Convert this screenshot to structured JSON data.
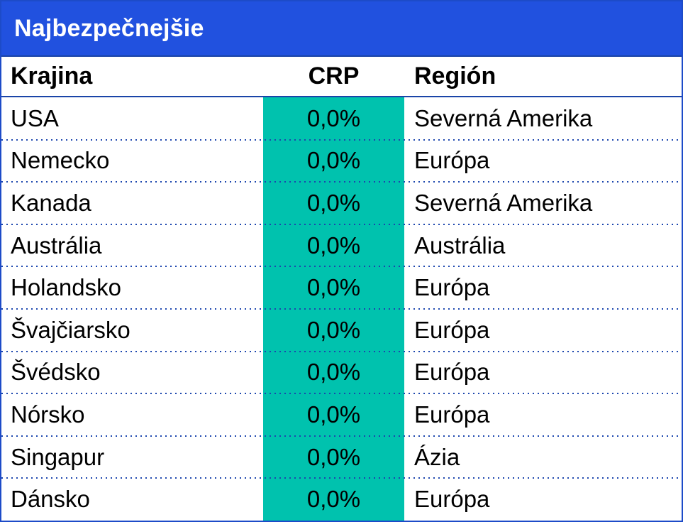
{
  "title": "Najbezpečnejšie",
  "chart_data": {
    "type": "table",
    "title": "Najbezpečnejšie",
    "columns": [
      "Krajina",
      "CRP",
      "Región"
    ],
    "rows": [
      [
        "USA",
        "0,0%",
        "Severná Amerika"
      ],
      [
        "Nemecko",
        "0,0%",
        "Európa"
      ],
      [
        "Kanada",
        "0,0%",
        "Severná Amerika"
      ],
      [
        "Austrália",
        "0,0%",
        "Austrália"
      ],
      [
        "Holandsko",
        "0,0%",
        "Európa"
      ],
      [
        "Švajčiarsko",
        "0,0%",
        "Európa"
      ],
      [
        "Švédsko",
        "0,0%",
        "Európa"
      ],
      [
        "Nórsko",
        "0,0%",
        "Európa"
      ],
      [
        "Singapur",
        "0,0%",
        "Ázia"
      ],
      [
        "Dánsko",
        "0,0%",
        "Európa"
      ]
    ]
  },
  "colors": {
    "header_blue": "#2151df",
    "crp_teal": "#00c2ae",
    "line_blue": "#1a44a8",
    "dotted_line": "#1c46ae",
    "outer_border": "#1d4bc8",
    "text": "#000000",
    "title_text": "#ffffff"
  }
}
